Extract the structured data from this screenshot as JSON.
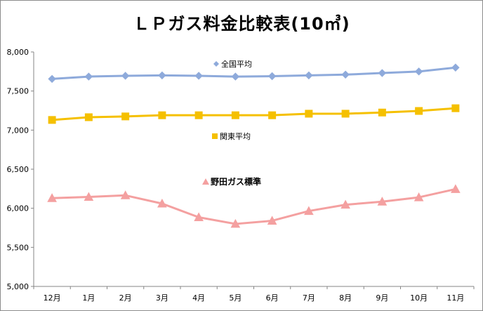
{
  "chart_data": {
    "type": "line",
    "title": "ＬＰガス料金比較表(10㎥)",
    "categories": [
      "12月",
      "1月",
      "2月",
      "3月",
      "4月",
      "5月",
      "6月",
      "7月",
      "8月",
      "9月",
      "10月",
      "11月"
    ],
    "ylim": [
      5000,
      8000
    ],
    "yticks": [
      "5,000",
      "5,500",
      "6,000",
      "6,500",
      "7,000",
      "7,500",
      "8,000"
    ],
    "grid": false,
    "series": [
      {
        "name": "全国平均",
        "color": "#8eaadb",
        "marker": "diamond",
        "values": [
          7655,
          7685,
          7695,
          7700,
          7695,
          7685,
          7690,
          7700,
          7710,
          7730,
          7750,
          7800
        ]
      },
      {
        "name": "関東平均",
        "color": "#f5c000",
        "marker": "square",
        "values": [
          7130,
          7165,
          7175,
          7190,
          7190,
          7190,
          7190,
          7210,
          7210,
          7225,
          7245,
          7280
        ]
      },
      {
        "name": "野田ガス標準",
        "color": "#f4a0a0",
        "marker": "triangle",
        "values": [
          6130,
          6145,
          6165,
          6060,
          5885,
          5800,
          5840,
          5965,
          6045,
          6085,
          6140,
          6245
        ]
      }
    ]
  }
}
